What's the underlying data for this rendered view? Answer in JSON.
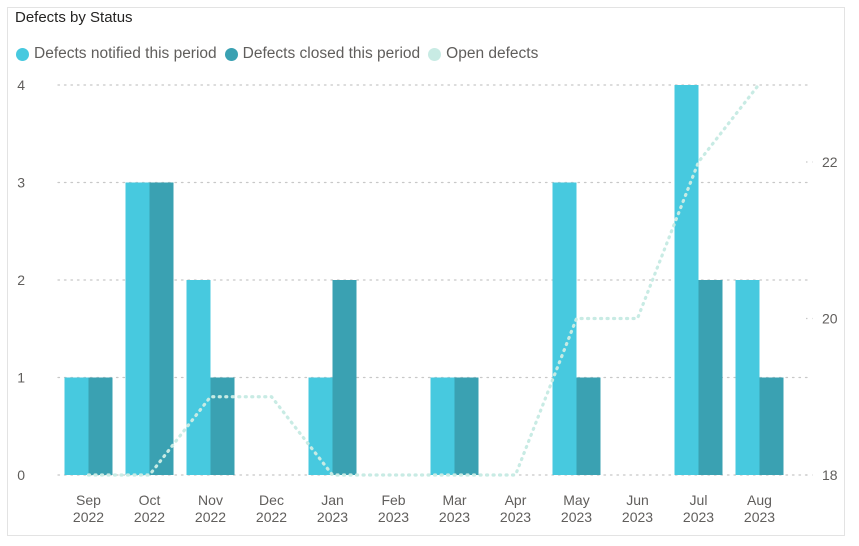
{
  "chart_data": {
    "type": "bar",
    "title": "Defects by Status",
    "categories": [
      [
        "Sep",
        "2022"
      ],
      [
        "Oct",
        "2022"
      ],
      [
        "Nov",
        "2022"
      ],
      [
        "Dec",
        "2022"
      ],
      [
        "Jan",
        "2023"
      ],
      [
        "Feb",
        "2023"
      ],
      [
        "Mar",
        "2023"
      ],
      [
        "Apr",
        "2023"
      ],
      [
        "May",
        "2023"
      ],
      [
        "Jun",
        "2023"
      ],
      [
        "Jul",
        "2023"
      ],
      [
        "Aug",
        "2023"
      ]
    ],
    "series": [
      {
        "name": "Defects notified this period",
        "type": "bar",
        "axis": "left",
        "color": "#47c9df",
        "values": [
          1,
          3,
          2,
          0,
          1,
          0,
          1,
          0,
          3,
          0,
          4,
          2
        ]
      },
      {
        "name": "Defects closed this period",
        "type": "bar",
        "axis": "left",
        "color": "#3aa1b2",
        "values": [
          1,
          3,
          1,
          0,
          2,
          0,
          1,
          0,
          1,
          0,
          2,
          1
        ]
      },
      {
        "name": "Open defects",
        "type": "line",
        "style": "dotted",
        "axis": "right",
        "color": "#c8ebe4",
        "values": [
          18,
          18,
          19,
          19,
          18,
          18,
          18,
          18,
          20,
          20,
          22,
          23
        ]
      }
    ],
    "y_left": {
      "ticks": [
        0,
        1,
        2,
        3,
        4
      ],
      "range": [
        0,
        4
      ]
    },
    "y_right": {
      "ticks": [
        18,
        20,
        22
      ],
      "range": [
        18,
        23
      ]
    },
    "grid": "dotted horizontal",
    "legend_position": "top-left"
  }
}
